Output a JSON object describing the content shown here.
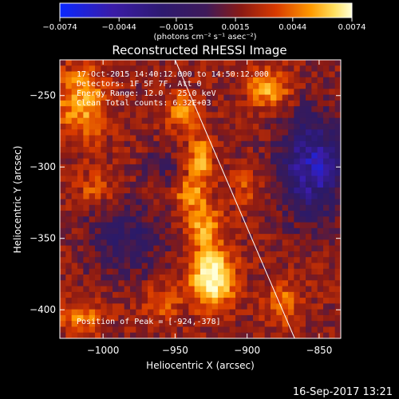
{
  "chart_data": {
    "type": "heatmap",
    "title": "Reconstructed RHESSI Image",
    "xlabel": "Heliocentric X (arcsec)",
    "ylabel": "Heliocentric Y (arcsec)",
    "xlim": [
      -1030,
      -835
    ],
    "ylim": [
      -420,
      -225
    ],
    "x_ticks": [
      -1000,
      -950,
      -900,
      -850
    ],
    "y_ticks": [
      -250,
      -300,
      -350,
      -400
    ],
    "x_tick_labels": [
      "−1000",
      "−950",
      "−900",
      "−850"
    ],
    "y_tick_labels": [
      "−250",
      "−300",
      "−350",
      "−400"
    ],
    "colorbar": {
      "min": -0.0074,
      "max": 0.0074,
      "ticks": [
        -0.0074,
        -0.0044,
        -0.0015,
        0.0015,
        0.0044,
        0.0074
      ],
      "tick_labels": [
        "−0.0074",
        "−0.0044",
        "−0.0015",
        "0.0015",
        "0.0044",
        "0.0074"
      ],
      "unit_label": "(photons cm⁻² s⁻¹ asec⁻²)"
    },
    "annotations": [
      "17-Oct-2015 14:40:12.000 to 14:50:12.000",
      "Detectors: 1F 5F 7F, Att 0",
      "Energy Range: 12.0 - 25.0 keV",
      "Clean     Total counts: 6.32E+03",
      "Position of Peak = [-924,-378]"
    ],
    "peak": {
      "x": -924,
      "y": -378
    },
    "limb_line": [
      [
        -950,
        -225
      ],
      [
        -867,
        -420
      ]
    ],
    "grid": false,
    "legend": "none"
  },
  "footer": {
    "timestamp": "16-Sep-2017 13:21"
  },
  "colors": {
    "background": "#000000",
    "text": "#ffffff",
    "colormap": [
      "#0a28ff",
      "#3a1ca8",
      "#2a1a6a",
      "#3a1a58",
      "#8a1a14",
      "#d83a00",
      "#ff9a00",
      "#ffe060",
      "#ffffd8"
    ]
  }
}
